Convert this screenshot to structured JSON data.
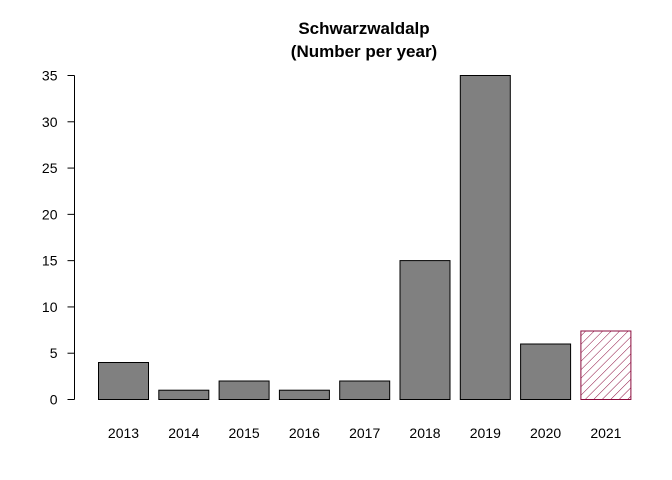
{
  "chart_data": {
    "type": "bar",
    "title_line1": "Schwarzwaldalp",
    "title_line2": "(Number per year)",
    "xlabel": "",
    "ylabel": "",
    "categories": [
      "2013",
      "2014",
      "2015",
      "2016",
      "2017",
      "2018",
      "2019",
      "2020",
      "2021"
    ],
    "values": [
      4,
      1,
      2,
      1,
      2,
      15,
      35,
      6,
      7.4
    ],
    "ylim": [
      0,
      35
    ],
    "yticks": [
      0,
      5,
      10,
      15,
      20,
      25,
      30,
      35
    ],
    "ytick_labels": [
      "0",
      "5",
      "10",
      "15",
      "20",
      "25",
      "30",
      "35"
    ],
    "grid": false,
    "bar_color": "#808080",
    "highlight_bar_color": "#8b0a3c",
    "highlight_category": "2021",
    "highlight_style": "hatched"
  }
}
